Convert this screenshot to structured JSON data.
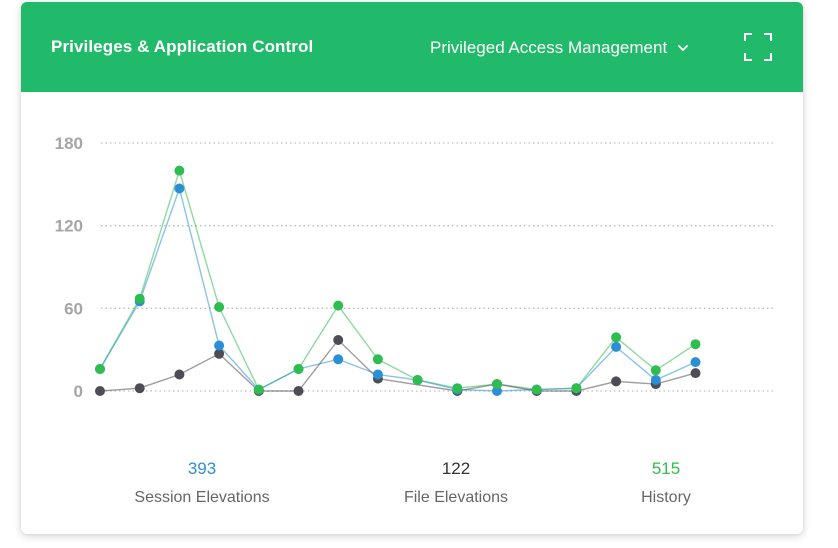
{
  "header": {
    "title": "Privileges & Application Control",
    "dropdown_value": "Privileged Access Management"
  },
  "colors": {
    "header_bg": "#21b96a",
    "green": "#2ebd4e",
    "blue": "#2b8fd6",
    "gray": "#4d4d55",
    "session_number": "#2f8fd0",
    "file_number": "#333333",
    "history_number": "#2ebd4e"
  },
  "icons": {
    "dropdown": "chevron-down-icon",
    "expand": "expand-icon"
  },
  "stats": [
    {
      "value": "393",
      "label": "Session Elevations",
      "color": "#2f8fd0"
    },
    {
      "value": "122",
      "label": "File Elevations",
      "color": "#333333"
    },
    {
      "value": "515",
      "label": "History",
      "color": "#2ebd4e"
    }
  ],
  "chart_data": {
    "type": "line",
    "x": [
      1,
      2,
      3,
      4,
      5,
      6,
      7,
      8,
      9,
      10,
      11,
      12,
      13,
      14,
      15,
      16,
      17
    ],
    "ylim": [
      0,
      180
    ],
    "yticks": [
      "180",
      "120",
      "60",
      "0"
    ],
    "ytick_values": [
      180,
      120,
      60,
      0
    ],
    "grid": true,
    "legend": false,
    "series": [
      {
        "color": "#2ebd4e",
        "points": [
          [
            1,
            16
          ],
          [
            2,
            67
          ],
          [
            3,
            160
          ],
          [
            4,
            61
          ],
          [
            5,
            1
          ],
          [
            6,
            16
          ],
          [
            7,
            62
          ],
          [
            8,
            23
          ],
          [
            9,
            8
          ],
          [
            10,
            2
          ],
          [
            11,
            5
          ],
          [
            12,
            1
          ],
          [
            13,
            2
          ],
          [
            14,
            39
          ],
          [
            15,
            15
          ],
          [
            16,
            34
          ]
        ]
      },
      {
        "color": "#2b8fd6",
        "points": [
          [
            1,
            16
          ],
          [
            2,
            65
          ],
          [
            3,
            147
          ],
          [
            4,
            33
          ],
          [
            5,
            1
          ],
          [
            6,
            16
          ],
          [
            7,
            23
          ],
          [
            8,
            12
          ],
          [
            9,
            8
          ],
          [
            10,
            1
          ],
          [
            11,
            0
          ],
          [
            12,
            1
          ],
          [
            13,
            2
          ],
          [
            14,
            32
          ],
          [
            15,
            8
          ],
          [
            16,
            21
          ]
        ]
      },
      {
        "color": "#4d4d55",
        "points": [
          [
            1,
            0
          ],
          [
            2,
            2
          ],
          [
            3,
            12
          ],
          [
            4,
            27
          ],
          [
            5,
            0
          ],
          [
            6,
            0
          ],
          [
            7,
            37
          ],
          [
            8,
            9
          ],
          [
            10,
            0
          ],
          [
            11,
            5
          ],
          [
            12,
            0
          ],
          [
            13,
            0
          ],
          [
            14,
            7
          ],
          [
            15,
            5
          ],
          [
            16,
            13
          ]
        ]
      }
    ]
  }
}
